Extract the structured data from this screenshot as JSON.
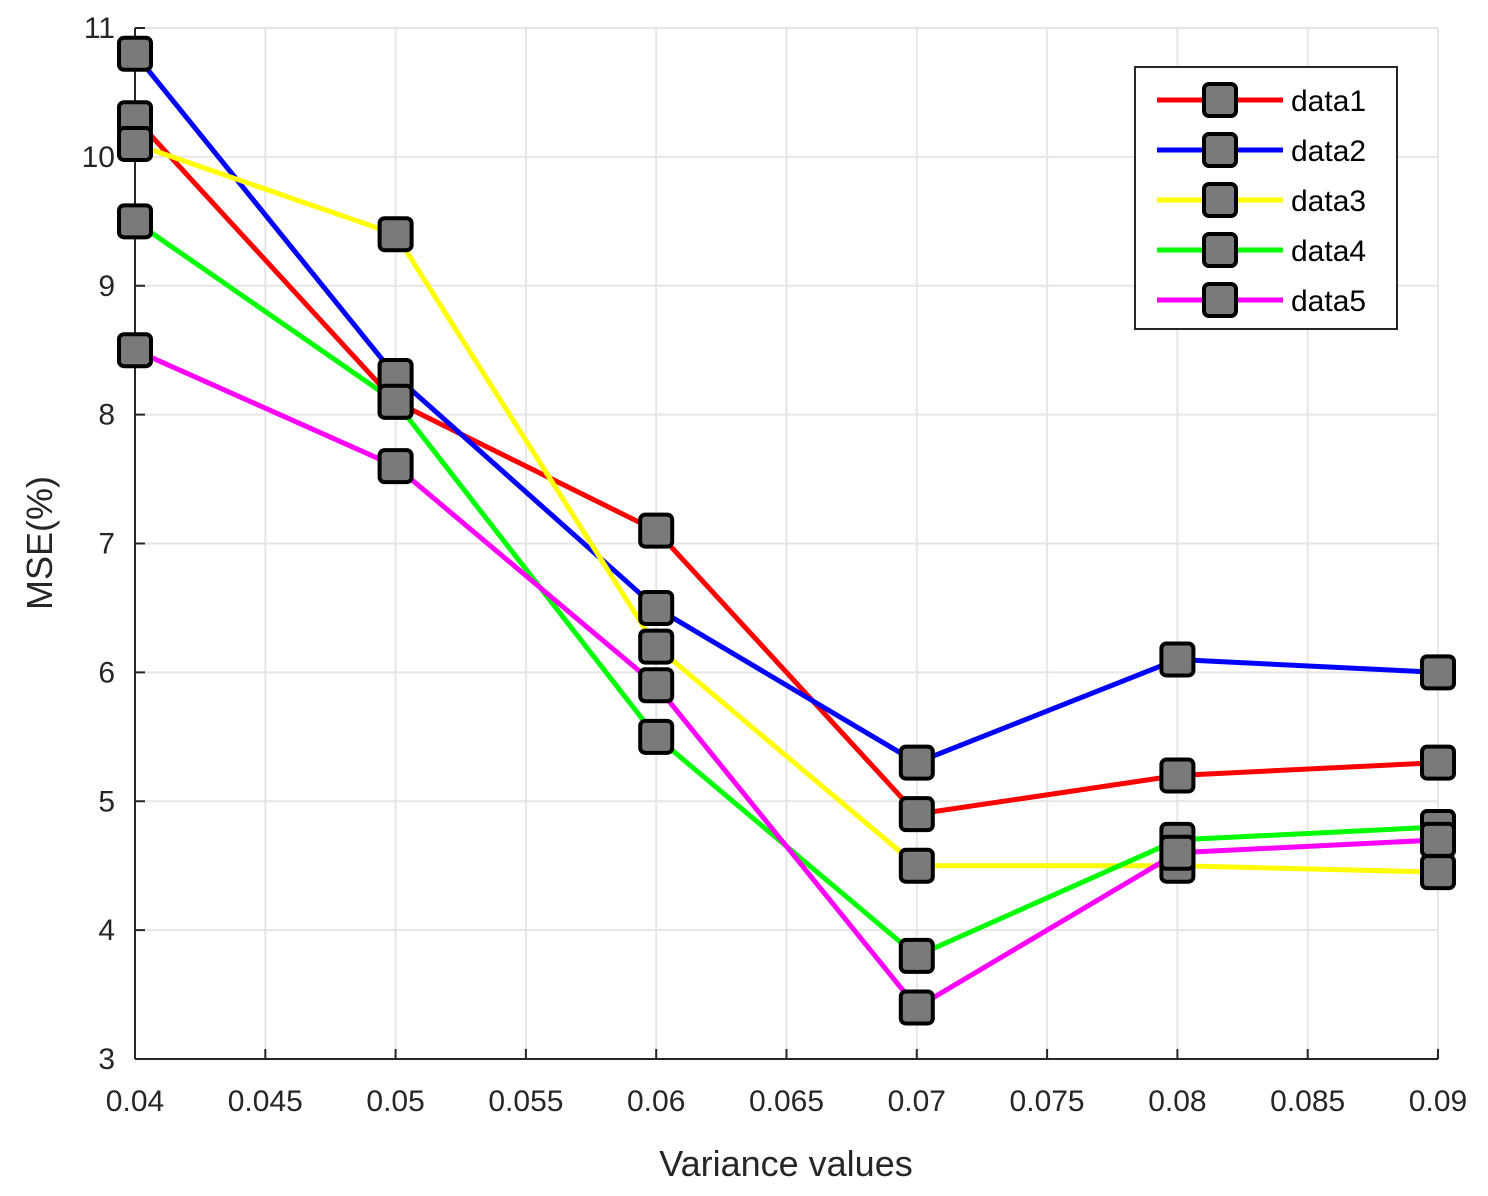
{
  "chart_data": {
    "type": "line",
    "title": "",
    "xlabel": "Variance values",
    "ylabel": "MSE(%)",
    "xlim": [
      0.04,
      0.09
    ],
    "ylim": [
      3,
      11
    ],
    "grid": true,
    "legend_position": "top-right",
    "x": [
      0.04,
      0.05,
      0.06,
      0.07,
      0.08,
      0.09
    ],
    "x_ticks": [
      0.04,
      0.045,
      0.05,
      0.055,
      0.06,
      0.065,
      0.07,
      0.075,
      0.08,
      0.085,
      0.09
    ],
    "x_tick_labels": [
      "0.04",
      "0.045",
      "0.05",
      "0.055",
      "0.06",
      "0.065",
      "0.07",
      "0.075",
      "0.08",
      "0.085",
      "0.09"
    ],
    "y_ticks": [
      3,
      4,
      5,
      6,
      7,
      8,
      9,
      10,
      11
    ],
    "y_tick_labels": [
      "3",
      "4",
      "5",
      "6",
      "7",
      "8",
      "9",
      "10",
      "11"
    ],
    "marker_color": "#7a7a7a",
    "series": [
      {
        "name": "data1",
        "color": "#ff0000",
        "values": [
          10.3,
          8.1,
          7.1,
          4.9,
          5.2,
          5.3
        ]
      },
      {
        "name": "data2",
        "color": "#0000ff",
        "values": [
          10.8,
          8.3,
          6.5,
          5.3,
          6.1,
          6.0
        ]
      },
      {
        "name": "data3",
        "color": "#ffff00",
        "values": [
          10.1,
          9.4,
          6.2,
          4.5,
          4.5,
          4.45
        ]
      },
      {
        "name": "data4",
        "color": "#00ff00",
        "values": [
          9.5,
          8.1,
          5.5,
          3.8,
          4.7,
          4.8
        ]
      },
      {
        "name": "data5",
        "color": "#ff00ff",
        "values": [
          8.5,
          7.6,
          5.9,
          3.4,
          4.6,
          4.7
        ]
      }
    ]
  }
}
